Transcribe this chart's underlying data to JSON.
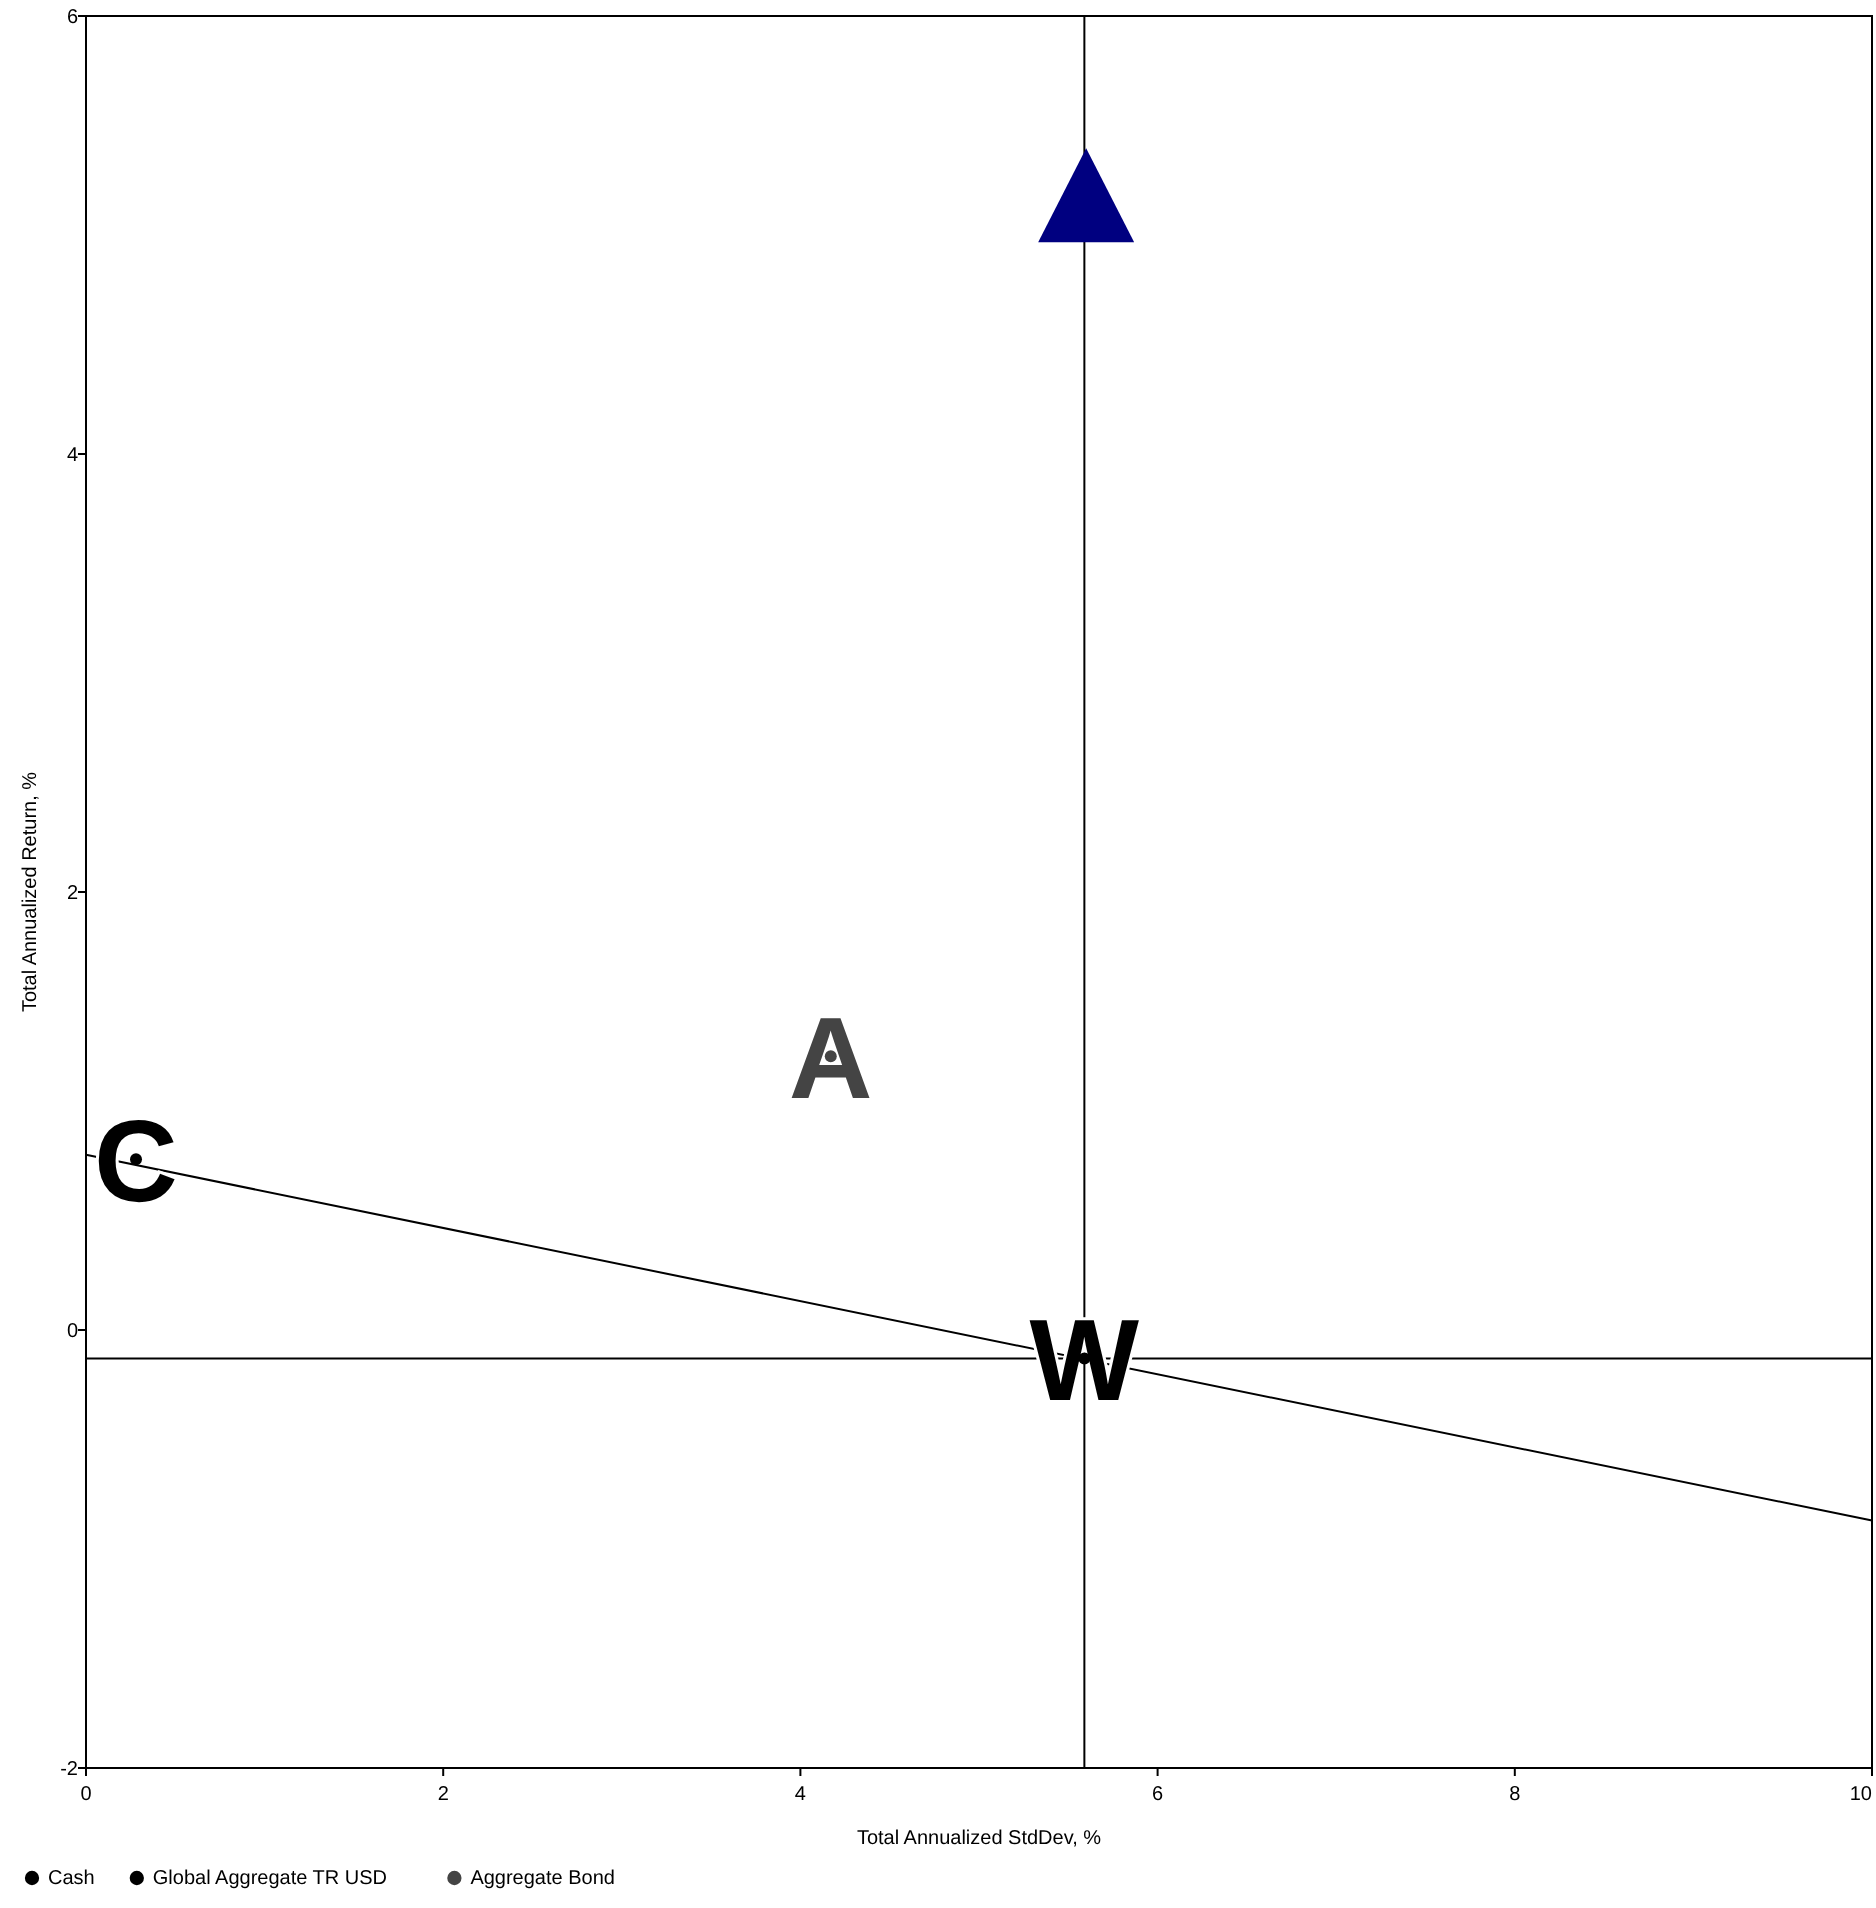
{
  "chart_data": {
    "type": "scatter",
    "xlabel": "Total Annualized StdDev, %",
    "ylabel": "Total Annualized Return, %",
    "xlim": [
      0,
      10
    ],
    "xticks": [
      0,
      2,
      4,
      6,
      8,
      10
    ],
    "ylim": [
      -2,
      6
    ],
    "yticks": [
      -2,
      0,
      2,
      4,
      6
    ],
    "grid": false,
    "legend": "bottom left",
    "series": [
      {
        "color": "#000080",
        "marker": "triangle",
        "x": [
          5.6
        ],
        "values": [
          5.15
        ]
      },
      {
        "name": "Cash",
        "color": "#000000",
        "marker": "circle",
        "x": [
          0.28
        ],
        "values": [
          0.78
        ]
      },
      {
        "name": "Global Aggregate TR USD",
        "color": "#000000",
        "marker": "circle",
        "x": [
          5.59
        ],
        "values": [
          -0.13
        ]
      },
      {
        "name": "Aggregate Bond",
        "color": "#444444",
        "marker": "circle",
        "x": [
          4.17
        ],
        "values": [
          1.25
        ]
      },
      {
        "type": "line",
        "color": "#000000",
        "marker": "none",
        "x": [
          0,
          10
        ],
        "values": [
          0.8,
          -0.87
        ]
      }
    ],
    "annotations": [
      {
        "text": "C",
        "x": 0.28,
        "y": 0.78
      },
      {
        "text": "W",
        "x": 5.59,
        "y": -0.13
      },
      {
        "text": "A",
        "x": 4.17,
        "y": 1.25
      }
    ],
    "ref_lines": [
      {
        "axis": "x",
        "value": 5.59,
        "color": "#000000"
      },
      {
        "axis": "y",
        "value": -0.13,
        "color": "#000000"
      }
    ]
  }
}
